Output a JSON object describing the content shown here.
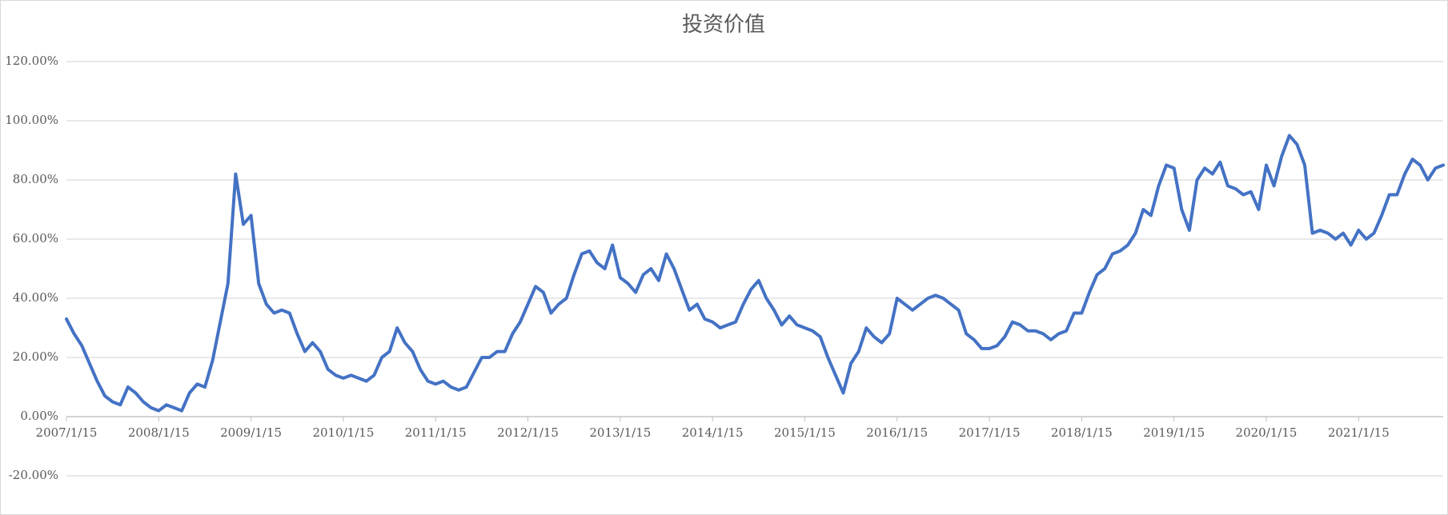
{
  "chart_data": {
    "type": "line",
    "title": "投资价值",
    "categories": [
      "2007/1/15",
      null,
      null,
      null,
      null,
      null,
      null,
      null,
      null,
      null,
      null,
      null,
      "2008/1/15",
      null,
      null,
      null,
      null,
      null,
      null,
      null,
      null,
      null,
      null,
      null,
      "2009/1/15",
      null,
      null,
      null,
      null,
      null,
      null,
      null,
      null,
      null,
      null,
      null,
      "2010/1/15",
      null,
      null,
      null,
      null,
      null,
      null,
      null,
      null,
      null,
      null,
      null,
      "2011/1/15",
      null,
      null,
      null,
      null,
      null,
      null,
      null,
      null,
      null,
      null,
      null,
      "2012/1/15",
      null,
      null,
      null,
      null,
      null,
      null,
      null,
      null,
      null,
      null,
      null,
      "2013/1/15",
      null,
      null,
      null,
      null,
      null,
      null,
      null,
      null,
      null,
      null,
      null,
      "2014/1/15",
      null,
      null,
      null,
      null,
      null,
      null,
      null,
      null,
      null,
      null,
      null,
      "2015/1/15",
      null,
      null,
      null,
      null,
      null,
      null,
      null,
      null,
      null,
      null,
      null,
      "2016/1/15",
      null,
      null,
      null,
      null,
      null,
      null,
      null,
      null,
      null,
      null,
      null,
      "2017/1/15",
      null,
      null,
      null,
      null,
      null,
      null,
      null,
      null,
      null,
      null,
      null,
      "2018/1/15",
      null,
      null,
      null,
      null,
      null,
      null,
      null,
      null,
      null,
      null,
      null,
      "2019/1/15",
      null,
      null,
      null,
      null,
      null,
      null,
      null,
      null,
      null,
      null,
      null,
      "2020/1/15",
      null,
      null,
      null,
      null,
      null,
      null,
      null,
      null,
      null,
      null,
      null,
      "2021/1/15",
      null,
      null,
      null,
      null,
      null,
      null,
      null,
      null,
      null,
      null,
      null
    ],
    "series": [
      {
        "color": "#4472c4",
        "values": [
          33,
          28,
          24,
          18,
          12,
          7,
          5,
          4,
          10,
          8,
          5,
          3,
          2,
          4,
          3,
          2,
          8,
          11,
          10,
          19,
          32,
          45,
          82,
          65,
          68,
          45,
          38,
          35,
          36,
          35,
          28,
          22,
          25,
          22,
          16,
          14,
          13,
          14,
          13,
          12,
          14,
          20,
          22,
          30,
          25,
          22,
          16,
          12,
          11,
          12,
          10,
          9,
          10,
          15,
          20,
          20,
          22,
          22,
          28,
          32,
          38,
          44,
          42,
          35,
          38,
          40,
          48,
          55,
          56,
          52,
          50,
          58,
          47,
          45,
          42,
          48,
          50,
          46,
          55,
          50,
          43,
          36,
          38,
          33,
          32,
          30,
          31,
          32,
          38,
          43,
          46,
          40,
          36,
          31,
          34,
          31,
          30,
          29,
          27,
          20,
          14,
          8,
          18,
          22,
          30,
          27,
          25,
          28,
          40,
          38,
          36,
          38,
          40,
          41,
          40,
          38,
          36,
          28,
          26,
          23,
          23,
          24,
          27,
          32,
          31,
          29,
          29,
          28,
          26,
          28,
          29,
          35,
          35,
          42,
          48,
          50,
          55,
          56,
          58,
          62,
          70,
          68,
          78,
          85,
          84,
          70,
          63,
          80,
          84,
          82,
          86,
          78,
          77,
          75,
          76,
          70,
          85,
          78,
          88,
          95,
          92,
          85,
          62,
          63,
          62,
          60,
          62,
          58,
          63,
          60,
          62,
          68,
          75,
          75,
          82,
          87,
          85,
          80,
          84,
          85
        ]
      }
    ],
    "ylim": [
      -20,
      120
    ],
    "yticks": [
      {
        "value": -20,
        "label": "-20.00%"
      },
      {
        "value": 0,
        "label": "0.00%"
      },
      {
        "value": 20,
        "label": "20.00%"
      },
      {
        "value": 40,
        "label": "40.00%"
      },
      {
        "value": 60,
        "label": "60.00%"
      },
      {
        "value": 80,
        "label": "80.00%"
      },
      {
        "value": 100,
        "label": "100.00%"
      },
      {
        "value": 120,
        "label": "120.00%"
      }
    ],
    "grid": true
  }
}
